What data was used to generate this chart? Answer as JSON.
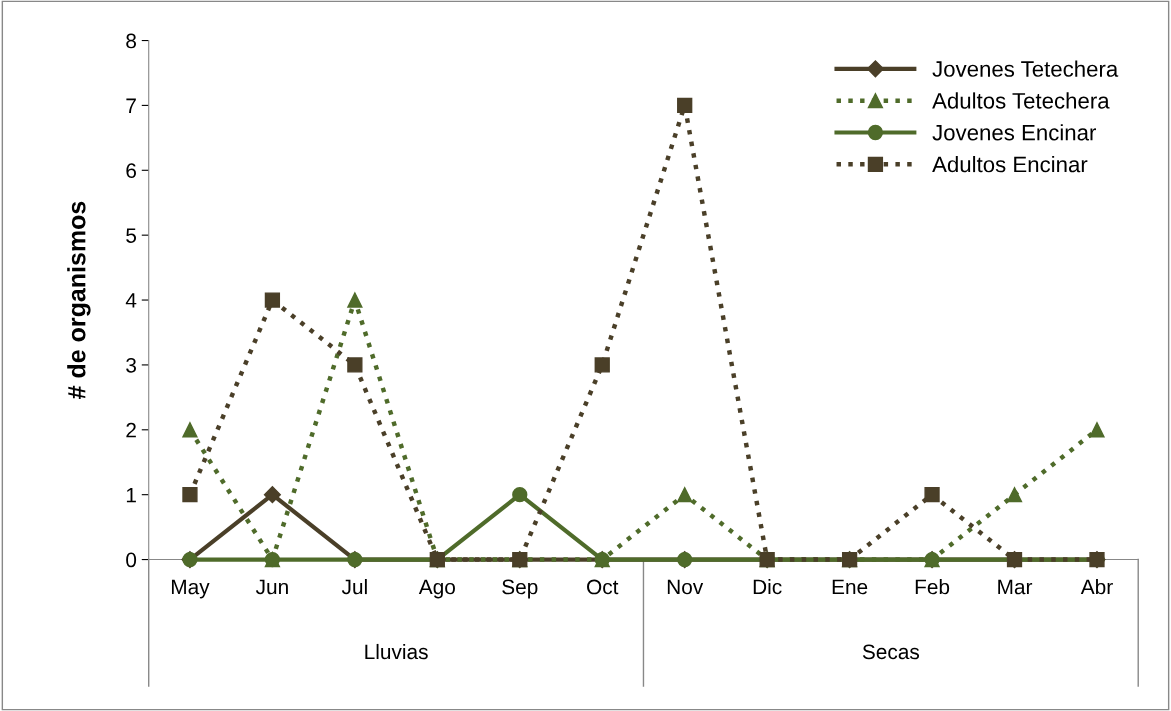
{
  "chart_data": {
    "type": "line",
    "ylabel": "# de organismos",
    "categories": [
      "May",
      "Jun",
      "Jul",
      "Ago",
      "Sep",
      "Oct",
      "Nov",
      "Dic",
      "Ene",
      "Feb",
      "Mar",
      "Abr"
    ],
    "annotations": [
      "Lluvias",
      "Secas"
    ],
    "series": [
      {
        "name": "Jovenes Tetechera",
        "color": "#4a3f28",
        "marker": "diamond",
        "line_style": "solid",
        "values": [
          0,
          1,
          0,
          0,
          0,
          0,
          0,
          0,
          0,
          0,
          0,
          0
        ]
      },
      {
        "name": "Adultos Tetechera",
        "color": "#4f6b2a",
        "marker": "triangle",
        "line_style": "dotted",
        "values": [
          2,
          0,
          4,
          0,
          0,
          0,
          1,
          0,
          0,
          0,
          1,
          2
        ]
      },
      {
        "name": "Jovenes Encinar",
        "color": "#4f6b2a",
        "marker": "circle",
        "line_style": "solid",
        "values": [
          0,
          0,
          0,
          0,
          1,
          0,
          0,
          0,
          0,
          0,
          0,
          0
        ]
      },
      {
        "name": "Adultos Encinar",
        "color": "#4a3f28",
        "marker": "square",
        "line_style": "dotted",
        "values": [
          1,
          4,
          3,
          0,
          0,
          3,
          7,
          0,
          0,
          1,
          0,
          0
        ]
      }
    ],
    "ylim": [
      0,
      8
    ],
    "yticks": [
      0,
      1,
      2,
      3,
      4,
      5,
      6,
      7,
      8
    ],
    "grid": false,
    "legend": "top right"
  }
}
